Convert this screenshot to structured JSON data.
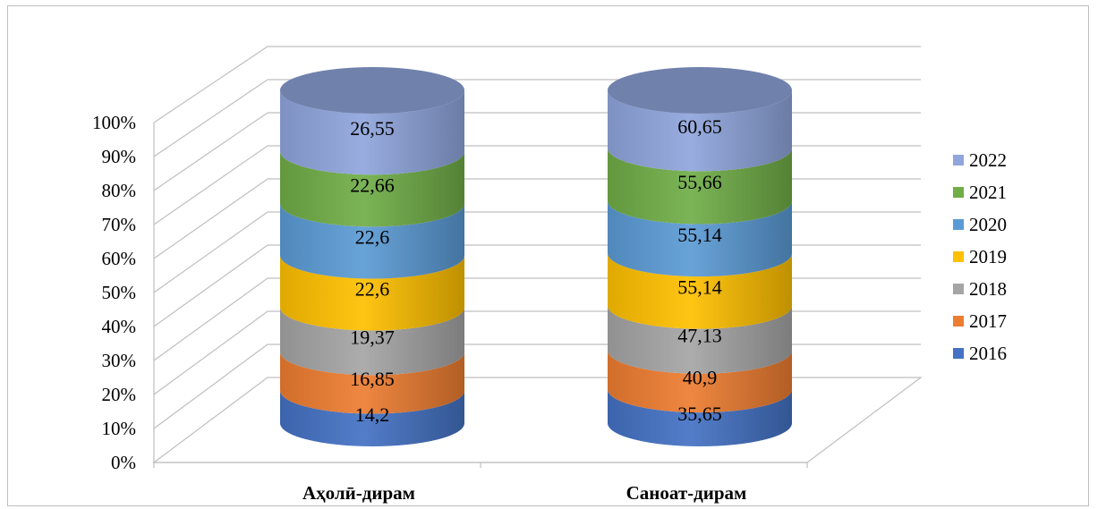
{
  "chart_data": {
    "type": "bar",
    "variant": "3d-stacked-cylinder-100-percent",
    "title": "",
    "xlabel": "",
    "ylabel": "",
    "ylim": [
      0,
      100
    ],
    "y_ticks": [
      "0%",
      "10%",
      "20%",
      "30%",
      "40%",
      "50%",
      "60%",
      "70%",
      "80%",
      "90%",
      "100%"
    ],
    "grid": true,
    "legend_position": "right",
    "categories": [
      "Аҳолӣ-дирам",
      "Саноат-дирам"
    ],
    "series": [
      {
        "name": "2016",
        "color": "#4472c4",
        "values": [
          14.2,
          35.65
        ],
        "labels": [
          "14,2",
          "35,65"
        ]
      },
      {
        "name": "2017",
        "color": "#ed7d31",
        "values": [
          16.85,
          40.9
        ],
        "labels": [
          "16,85",
          "40,9"
        ]
      },
      {
        "name": "2018",
        "color": "#a5a5a5",
        "values": [
          19.37,
          47.13
        ],
        "labels": [
          "19,37",
          "47,13"
        ]
      },
      {
        "name": "2019",
        "color": "#ffc000",
        "values": [
          22.6,
          55.14
        ],
        "labels": [
          "22,6",
          "55,14"
        ]
      },
      {
        "name": "2020",
        "color": "#5b9bd5",
        "values": [
          22.6,
          55.14
        ],
        "labels": [
          "22,6",
          "55,14"
        ]
      },
      {
        "name": "2021",
        "color": "#70ad47",
        "values": [
          22.66,
          55.66
        ],
        "labels": [
          "22,66",
          "55,66"
        ]
      },
      {
        "name": "2022",
        "color": "#8fa5dc",
        "values": [
          26.55,
          60.65
        ],
        "labels": [
          "26,55",
          "60,65"
        ]
      }
    ]
  }
}
